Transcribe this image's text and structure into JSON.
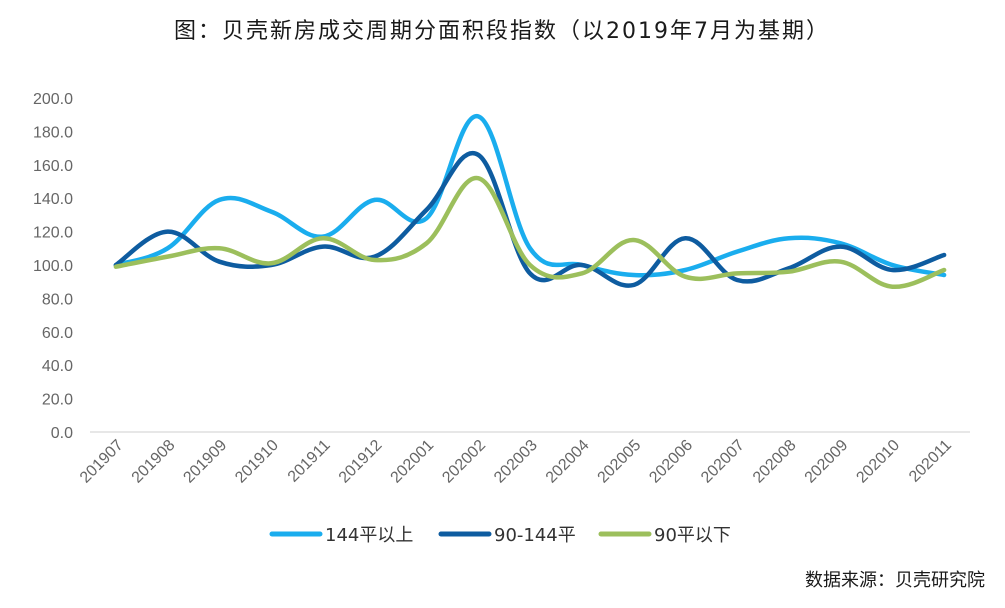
{
  "chart_data": {
    "type": "line",
    "title": "图：贝壳新房成交周期分面积段指数（以2019年7月为基期）",
    "source": "数据来源：贝壳研究院",
    "categories": [
      "201907",
      "201908",
      "201909",
      "201910",
      "201911",
      "201912",
      "202001",
      "202002",
      "202003",
      "202004",
      "202005",
      "202006",
      "202007",
      "202008",
      "202009",
      "202010",
      "202011"
    ],
    "ylim": [
      0,
      200
    ],
    "yticks": [
      "0.0",
      "20.0",
      "40.0",
      "60.0",
      "80.0",
      "100.0",
      "120.0",
      "140.0",
      "160.0",
      "180.0",
      "200.0"
    ],
    "grid": false,
    "legend_position": "bottom",
    "series": [
      {
        "name": "144平以上",
        "color": "#1AADEE",
        "values": [
          100,
          110,
          139,
          132,
          117,
          139,
          128,
          189,
          110,
          100,
          94,
          97,
          108,
          116,
          113,
          100,
          94
        ]
      },
      {
        "name": "90-144平",
        "color": "#0E5CA0",
        "values": [
          100,
          120,
          102,
          100,
          111,
          105,
          133,
          166,
          95,
          100,
          88,
          116,
          91,
          98,
          111,
          97,
          106
        ]
      },
      {
        "name": "90平以下",
        "color": "#9CBF5C",
        "values": [
          99,
          105,
          110,
          101,
          116,
          103,
          113,
          152,
          100,
          95,
          115,
          93,
          95,
          96,
          102,
          87,
          97
        ]
      }
    ]
  }
}
